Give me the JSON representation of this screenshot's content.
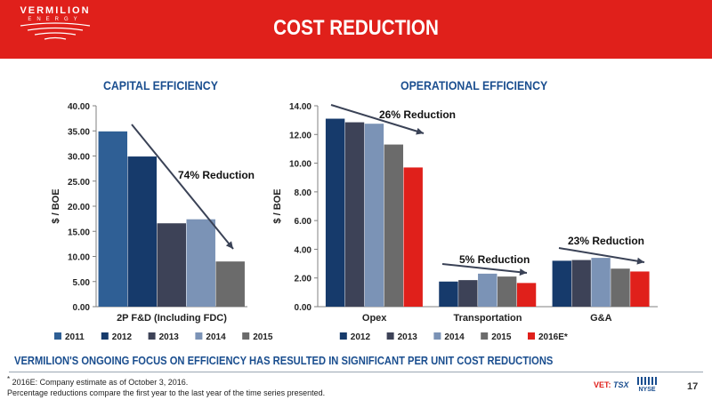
{
  "header": {
    "logo_name": "VERMILION",
    "logo_sub": "ENERGY",
    "title": "COST REDUCTION"
  },
  "colors": {
    "header_bg": "#e0201b",
    "title_blue": "#1a4e8f",
    "arrow": "#3a4256"
  },
  "chart_data": [
    {
      "type": "bar",
      "title": "CAPITAL EFFICIENCY",
      "ylabel": "$ / BOE",
      "xlabel": "",
      "ylim": [
        0,
        40
      ],
      "ytick_labels": [
        "0.00",
        "5.00",
        "10.00",
        "15.00",
        "20.00",
        "25.00",
        "30.00",
        "35.00",
        "40.00"
      ],
      "categories": [
        "2P F&D (Including FDC)"
      ],
      "series": [
        {
          "name": "2011",
          "color": "#2f5f95",
          "values": [
            34.9
          ]
        },
        {
          "name": "2012",
          "color": "#163a6b",
          "values": [
            29.9
          ]
        },
        {
          "name": "2013",
          "color": "#3d4257",
          "values": [
            16.6
          ]
        },
        {
          "name": "2014",
          "color": "#7b93b6",
          "values": [
            17.4
          ]
        },
        {
          "name": "2015",
          "color": "#6b6b6b",
          "values": [
            9.0
          ]
        }
      ],
      "annotations": [
        {
          "text": "74% Reduction"
        }
      ],
      "legend": "bottom",
      "grid": false
    },
    {
      "type": "bar",
      "title": "OPERATIONAL EFFICIENCY",
      "ylabel": "$ / BOE",
      "xlabel": "",
      "ylim": [
        0,
        14
      ],
      "ytick_labels": [
        "0.00",
        "2.00",
        "4.00",
        "6.00",
        "8.00",
        "10.00",
        "12.00",
        "14.00"
      ],
      "categories": [
        "Opex",
        "Transportation",
        "G&A"
      ],
      "series": [
        {
          "name": "2012",
          "color": "#163a6b",
          "values": [
            13.1,
            1.75,
            3.2
          ]
        },
        {
          "name": "2013",
          "color": "#3d4257",
          "values": [
            12.85,
            1.85,
            3.25
          ]
        },
        {
          "name": "2014",
          "color": "#7b93b6",
          "values": [
            12.75,
            2.3,
            3.4
          ]
        },
        {
          "name": "2015",
          "color": "#6b6b6b",
          "values": [
            11.3,
            2.1,
            2.65
          ]
        },
        {
          "name": "2016E*",
          "color": "#e0201b",
          "values": [
            9.7,
            1.65,
            2.45
          ]
        }
      ],
      "annotations": [
        {
          "text": "26% Reduction"
        },
        {
          "text": "5% Reduction"
        },
        {
          "text": "23% Reduction"
        }
      ],
      "legend": "bottom",
      "grid": false
    }
  ],
  "tagline": "VERMILION'S ONGOING FOCUS ON EFFICIENCY HAS RESULTED IN SIGNIFICANT PER UNIT COST REDUCTIONS",
  "footnote": {
    "marker": "*",
    "line1": "2016E:  Company estimate as of October 3, 2016.",
    "line2": "Percentage reductions compare the first year to the last year of the time series presented."
  },
  "exchanges": {
    "prefix": "VET:",
    "tsx": "TSX",
    "nyse": "NYSE"
  },
  "page_number": "17"
}
